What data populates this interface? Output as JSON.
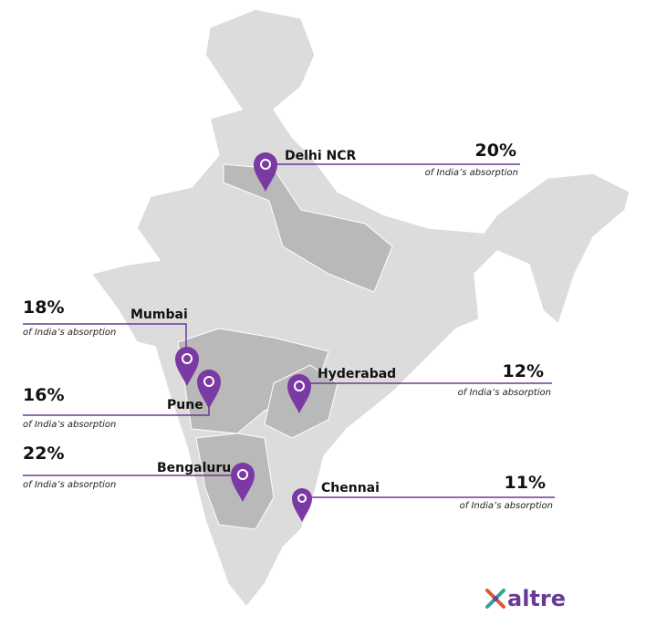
{
  "cities": [
    {
      "name": "Delhi NCR",
      "value": "20%",
      "note": "of India’s absorption"
    },
    {
      "name": "Mumbai",
      "value": "18%",
      "note": "of India’s absorption"
    },
    {
      "name": "Pune",
      "value": "16%",
      "note": "of India’s absorption"
    },
    {
      "name": "Hyderabad",
      "value": "12%",
      "note": "of India’s absorption"
    },
    {
      "name": "Bengaluru",
      "value": "22%",
      "note": "of India’s absorption"
    },
    {
      "name": "Chennai",
      "value": "11%",
      "note": "of India’s absorption"
    }
  ],
  "logo": "altre"
}
